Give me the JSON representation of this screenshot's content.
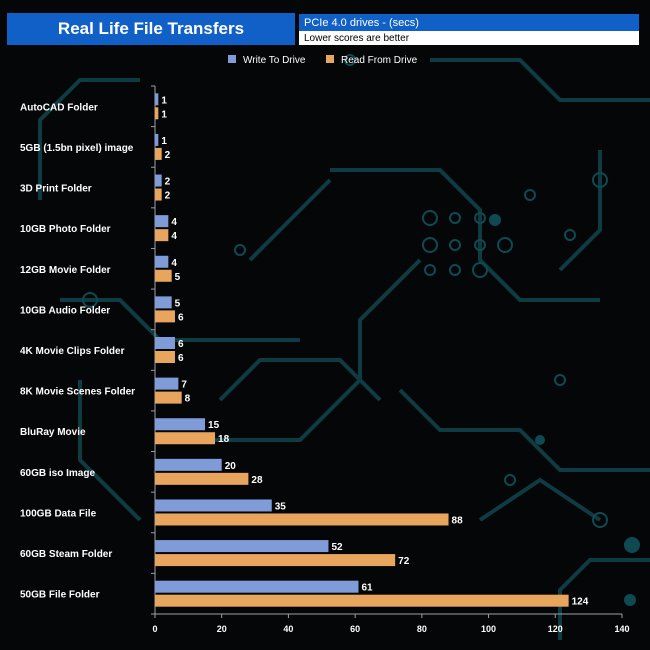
{
  "chart_data": {
    "type": "bar",
    "orientation": "horizontal",
    "title": "Real Life File Transfers",
    "subtitle": "PCIe 4.0 drives - (secs)",
    "note": "Lower scores are better",
    "categories": [
      "AutoCAD Folder",
      "5GB (1.5bn pixel) image",
      "3D Print Folder",
      "10GB Photo Folder",
      "12GB Movie Folder",
      "10GB Audio Folder",
      "4K Movie Clips Folder",
      "8K Movie Scenes Folder",
      "BluRay Movie",
      "60GB iso Image",
      "100GB Data File",
      "60GB Steam Folder",
      "50GB File Folder"
    ],
    "series": [
      {
        "name": "Write To  Drive",
        "color": "#7f9bd8",
        "values": [
          1,
          1,
          2,
          4,
          4,
          5,
          6,
          7,
          15,
          20,
          35,
          52,
          61
        ]
      },
      {
        "name": "Read From  Drive",
        "color": "#e8a55e",
        "values": [
          1,
          2,
          2,
          4,
          5,
          6,
          6,
          8,
          18,
          28,
          88,
          72,
          124
        ]
      }
    ],
    "xlim": [
      0,
      140
    ],
    "xticks": [
      "0",
      "20",
      "40",
      "60",
      "80",
      "100",
      "120",
      "140"
    ],
    "xlabel": "",
    "ylabel": "",
    "legend": "top-center",
    "grid": false
  }
}
